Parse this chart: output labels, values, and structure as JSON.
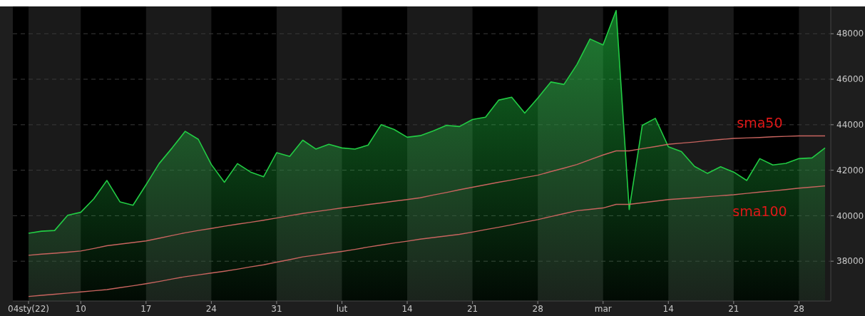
{
  "chart_data": {
    "type": "area",
    "categories": [
      "04sty(22)",
      null,
      null,
      null,
      "10",
      null,
      null,
      null,
      null,
      "17",
      null,
      null,
      null,
      null,
      "24",
      null,
      null,
      null,
      null,
      "31",
      null,
      null,
      null,
      null,
      "lut",
      null,
      null,
      null,
      null,
      "14",
      null,
      null,
      null,
      null,
      "21",
      null,
      null,
      null,
      null,
      "28",
      null,
      null,
      null,
      null,
      "mar",
      null,
      null,
      null,
      null,
      "14",
      null,
      null,
      null,
      null,
      "21",
      null,
      null,
      null,
      null,
      "28",
      null,
      null
    ],
    "series": [
      {
        "color": "#22cc44",
        "values": [
          39230,
          39320,
          39350,
          40020,
          40150,
          40740,
          41550,
          40610,
          40460,
          41360,
          42290,
          42980,
          43710,
          43360,
          42250,
          41470,
          42290,
          41920,
          41710,
          42770,
          42610,
          43320,
          42930,
          43140,
          42980,
          42930,
          43100,
          44000,
          43790,
          43450,
          43520,
          43730,
          43970,
          43920,
          44230,
          44330,
          45080,
          45210,
          44510,
          45170,
          45880,
          45770,
          46650,
          47770,
          47510,
          49020,
          40270,
          43970,
          44280,
          43030,
          42820,
          42170,
          41860,
          42150,
          41920,
          41550,
          42510,
          42230,
          42300,
          42510,
          42540,
          42980
        ]
      },
      {
        "name": "sma50",
        "type": "line",
        "color": "#c8645f",
        "values": [
          38260,
          38310,
          38350,
          38400,
          38450,
          38560,
          38680,
          38750,
          38820,
          38890,
          39010,
          39130,
          39250,
          39350,
          39440,
          39540,
          39630,
          39710,
          39800,
          39900,
          40000,
          40100,
          40180,
          40260,
          40340,
          40410,
          40490,
          40560,
          40640,
          40710,
          40790,
          40910,
          41020,
          41140,
          41250,
          41360,
          41470,
          41570,
          41680,
          41780,
          41940,
          42090,
          42250,
          42460,
          42670,
          42850,
          42850,
          42950,
          43040,
          43140,
          43190,
          43240,
          43300,
          43350,
          43400,
          43420,
          43440,
          43470,
          43490,
          43510,
          43510,
          43510
        ]
      },
      {
        "name": "sma100",
        "type": "line",
        "color": "#c8645f",
        "values": [
          36450,
          36500,
          36550,
          36600,
          36650,
          36700,
          36750,
          36840,
          36920,
          37010,
          37110,
          37220,
          37320,
          37400,
          37480,
          37560,
          37650,
          37750,
          37840,
          37960,
          38070,
          38190,
          38270,
          38350,
          38430,
          38520,
          38620,
          38710,
          38800,
          38880,
          38970,
          39040,
          39110,
          39180,
          39280,
          39390,
          39490,
          39600,
          39720,
          39830,
          39960,
          40090,
          40220,
          40280,
          40340,
          40500,
          40500,
          40570,
          40640,
          40710,
          40750,
          40790,
          40840,
          40880,
          40920,
          40980,
          41040,
          41090,
          41150,
          41210,
          41260,
          41310
        ]
      }
    ],
    "ylim": [
      36250,
      49200
    ],
    "yticks": [
      38000,
      40000,
      42000,
      44000,
      46000,
      48000
    ],
    "grid": "y"
  }
}
